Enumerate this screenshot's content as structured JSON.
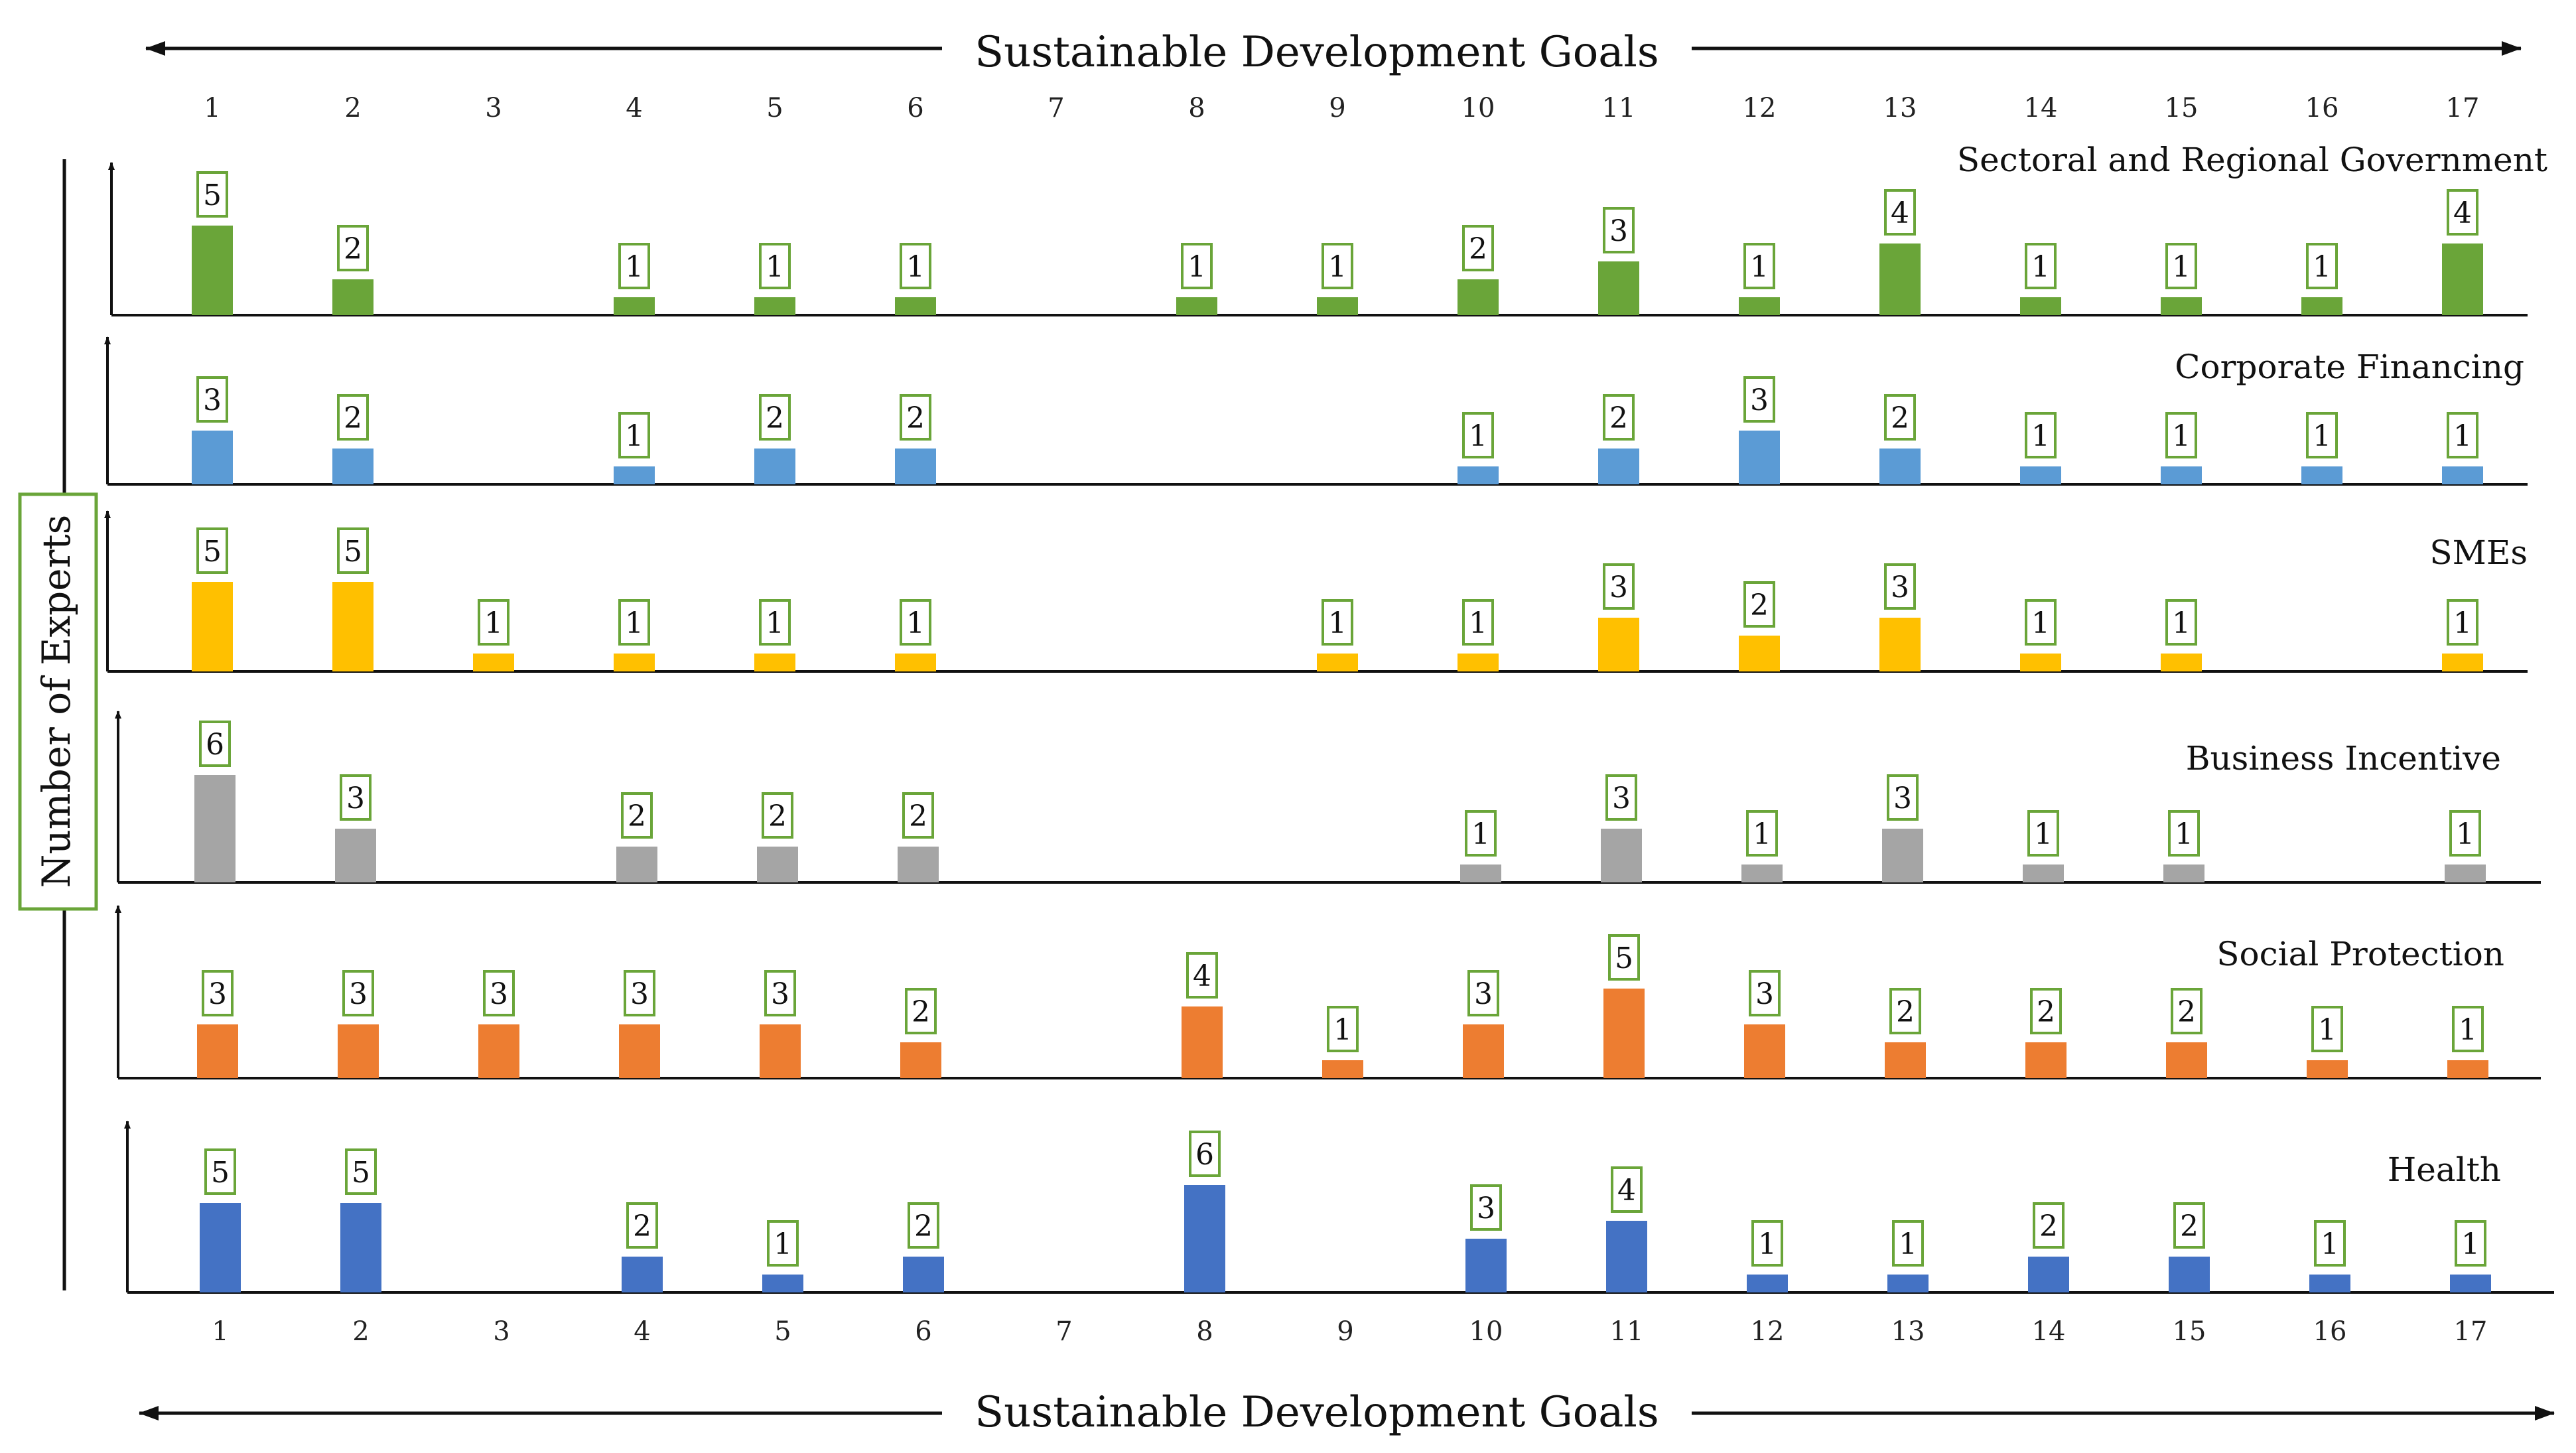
{
  "chart_data": {
    "type": "bar",
    "title": "Sustainable Development Goals",
    "xlabel": "Sustainable Development Goals",
    "ylabel": "Number of Experts",
    "categories": [
      "1",
      "2",
      "3",
      "4",
      "5",
      "6",
      "7",
      "8",
      "9",
      "10",
      "11",
      "12",
      "13",
      "14",
      "15",
      "16",
      "17"
    ],
    "ylim": [
      0,
      6
    ],
    "panels": [
      {
        "name": "Sectoral and Regional Government",
        "color": "#6aa539",
        "values": [
          5,
          2,
          0,
          1,
          1,
          1,
          0,
          1,
          1,
          2,
          3,
          1,
          4,
          1,
          1,
          1,
          4
        ]
      },
      {
        "name": "Corporate Financing",
        "color": "#5b9bd5",
        "values": [
          3,
          2,
          0,
          1,
          2,
          2,
          0,
          0,
          0,
          1,
          2,
          3,
          2,
          1,
          1,
          1,
          1
        ]
      },
      {
        "name": "SMEs",
        "color": "#ffc000",
        "values": [
          5,
          5,
          1,
          1,
          1,
          1,
          0,
          0,
          1,
          1,
          3,
          2,
          3,
          1,
          1,
          0,
          1
        ]
      },
      {
        "name": "Business Incentive",
        "color": "#a5a5a5",
        "values": [
          6,
          3,
          0,
          2,
          2,
          2,
          0,
          0,
          0,
          1,
          3,
          1,
          3,
          1,
          1,
          0,
          1
        ]
      },
      {
        "name": "Social Protection",
        "color": "#ed7d31",
        "values": [
          3,
          3,
          3,
          3,
          3,
          2,
          0,
          4,
          1,
          3,
          5,
          3,
          2,
          2,
          2,
          1,
          1
        ]
      },
      {
        "name": "Health",
        "color": "#4472c4",
        "values": [
          5,
          5,
          0,
          2,
          1,
          2,
          0,
          6,
          0,
          3,
          4,
          1,
          1,
          2,
          2,
          1,
          1
        ]
      }
    ],
    "label_box_color": "#6aa539"
  }
}
